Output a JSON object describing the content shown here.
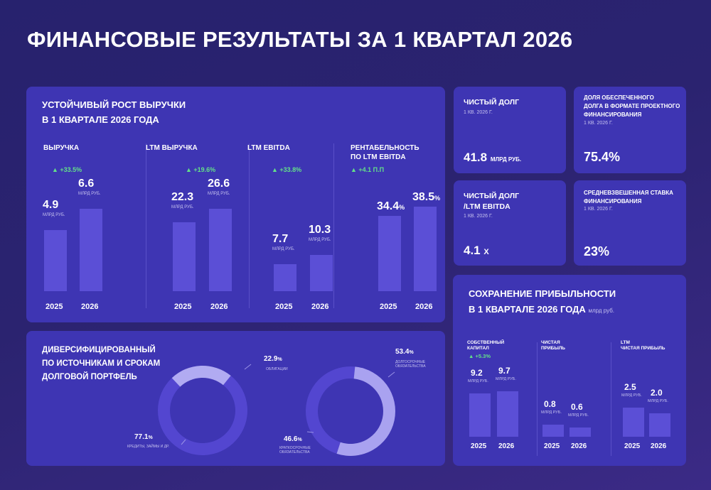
{
  "title": "ФИНАНСОВЫЕ РЕЗУЛЬТАТЫ ЗА 1 КВАРТАЛ 2026",
  "growth_card": {
    "title_line1": "УСТОЙЧИВЫЙ РОСТ ВЫРУЧКИ",
    "title_line2": "В 1 КВАРТАЛЕ 2026 ГОДА"
  },
  "kpis": {
    "net_debt": {
      "title": "ЧИСТЫЙ ДОЛГ",
      "period": "1 КВ. 2026 Г.",
      "value": "41.8",
      "unit": "МЛРД РУБ."
    },
    "secured_share": {
      "title_line1": "ДОЛЯ ОБЕСПЕЧЕННОГО",
      "title_line2": "ДОЛГА В ФОРМАТЕ ПРОЕКТНОГО",
      "title_line3": "ФИНАНСИРОВАНИЯ",
      "period": "1 КВ. 2026 Г.",
      "value": "75.4%"
    },
    "net_debt_ebitda": {
      "title_line1": "ЧИСТЫЙ ДОЛГ",
      "title_line2": "/LTM EBITDA",
      "period": "1 КВ. 2026 Г.",
      "value": "4.1",
      "unit": "Х"
    },
    "weighted_rate": {
      "title_line1": "СРЕДНЕВЗВЕШЕННАЯ СТАВКА",
      "title_line2": "ФИНАНСИРОВАНИЯ",
      "period": "1 КВ. 2026 Г.",
      "value": "23%"
    }
  },
  "portfolio_card": {
    "title_line1": "ДИВЕРСИФИЦИРОВАННЫЙ",
    "title_line2": "ПО ИСТОЧНИКАМ И СРОКАМ",
    "title_line3": "ДОЛГОВОЙ ПОРТФЕЛЬ"
  },
  "profit_card": {
    "title_line1": "СОХРАНЕНИЕ ПРИБЫЛЬНОСТИ",
    "title_line2": "В 1 КВАРТАЛЕ 2026 ГОДА",
    "unit_note": "млрд руб."
  },
  "colors": {
    "background": "#2b2370",
    "card": "#3e35b3",
    "bar": "#5b4fd6",
    "donut_dark": "#5346d0",
    "donut_light": "#a9a2f0",
    "growth_green": "#63e08a"
  },
  "chart_data": [
    {
      "type": "bar",
      "title": "ВЫРУЧКА",
      "categories": [
        "2025",
        "2026"
      ],
      "values": [
        4.9,
        6.6
      ],
      "value_labels": [
        "4.9",
        "6.6"
      ],
      "unit": "МЛРД РУБ.",
      "change": "+33.5%"
    },
    {
      "type": "bar",
      "title": "LTM ВЫРУЧКА",
      "categories": [
        "2025",
        "2026"
      ],
      "values": [
        22.3,
        26.6
      ],
      "value_labels": [
        "22.3",
        "26.6"
      ],
      "unit": "МЛРД РУБ.",
      "change": "+19.6%"
    },
    {
      "type": "bar",
      "title": "LTM EBITDA",
      "categories": [
        "2025",
        "2026"
      ],
      "values": [
        7.7,
        10.3
      ],
      "value_labels": [
        "7.7",
        "10.3"
      ],
      "unit": "МЛРД РУБ.",
      "change": "+33.8%"
    },
    {
      "type": "bar",
      "title": "РЕНТАБЕЛЬНОСТЬ ПО LTM EBITDA",
      "title_line1": "РЕНТАБЕЛЬНОСТЬ",
      "title_line2": "ПО LTM EBITDA",
      "categories": [
        "2025",
        "2026"
      ],
      "values": [
        34.4,
        38.5
      ],
      "value_labels": [
        "34.4",
        "38.5"
      ],
      "unit": "%",
      "change": "+4.1 П.П"
    },
    {
      "type": "pie",
      "labels": [
        "КРЕДИТЫ, ЗАЙМЫ И ДР.",
        "ОБЛИГАЦИИ"
      ],
      "values": [
        77.1,
        22.9
      ],
      "value_labels": [
        "77.1",
        "22.9"
      ],
      "unit": "%"
    },
    {
      "type": "pie",
      "labels": [
        "КРАТКОСРОЧНЫЕ ОБЯЗАТЕЛЬСТВА",
        "ДОЛГОСРОЧНЫЕ ОБЯЗАТЕЛЬСТВА"
      ],
      "label_lines": [
        [
          "КРАТКОСРОЧНЫЕ",
          "ОБЯЗАТЕЛЬСТВА"
        ],
        [
          "ДОЛГОСРОЧНЫЕ",
          "ОБЯЗАТЕЛЬСТВА"
        ]
      ],
      "values": [
        46.6,
        53.4
      ],
      "value_labels": [
        "46.6",
        "53.4"
      ],
      "unit": "%"
    },
    {
      "type": "bar",
      "title": "СОБСТВЕННЫЙ КАПИТАЛ",
      "title_line1": "СОБСТВЕННЫЙ",
      "title_line2": "КАПИТАЛ",
      "categories": [
        "2025",
        "2026"
      ],
      "values": [
        9.2,
        9.7
      ],
      "value_labels": [
        "9.2",
        "9.7"
      ],
      "unit": "МЛРД РУБ.",
      "change": "+5.3%"
    },
    {
      "type": "bar",
      "title": "ЧИСТАЯ ПРИБЫЛЬ",
      "title_line1": "ЧИСТАЯ",
      "title_line2": "ПРИБЫЛЬ",
      "categories": [
        "2025",
        "2026"
      ],
      "values": [
        0.8,
        0.6
      ],
      "value_labels": [
        "0.8",
        "0.6"
      ],
      "unit": "МЛРД РУБ."
    },
    {
      "type": "bar",
      "title": "LTM ЧИСТАЯ ПРИБЫЛЬ",
      "title_line1": "LTM",
      "title_line2": "ЧИСТАЯ ПРИБЫЛЬ",
      "categories": [
        "2025",
        "2026"
      ],
      "values": [
        2.5,
        2.0
      ],
      "value_labels": [
        "2.5",
        "2.0"
      ],
      "unit": "МЛРД РУБ."
    }
  ]
}
